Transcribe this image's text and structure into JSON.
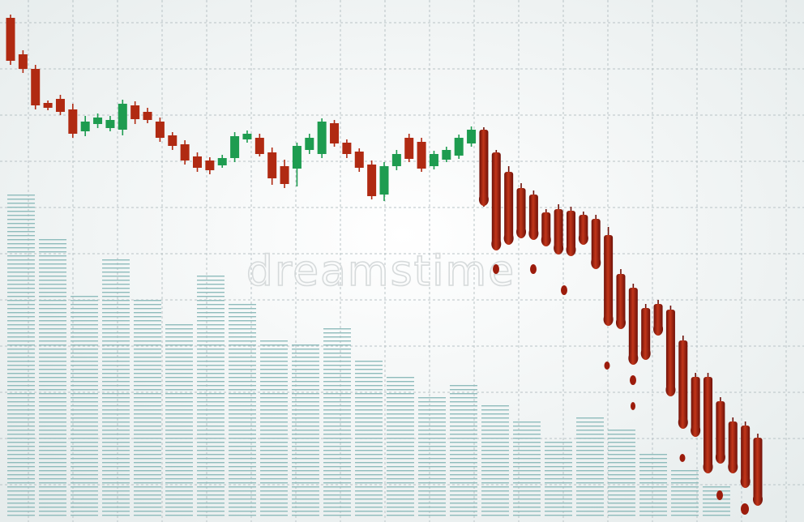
{
  "chart_data": {
    "type": "candlestick",
    "watermark": "dreamstime",
    "ylim": [
      0,
      640
    ],
    "grid": true,
    "up_color": "#1e9c50",
    "down_color": "#b02a12",
    "open": [
      618,
      573,
      555,
      513,
      518,
      505,
      478,
      487,
      482,
      480,
      510,
      502,
      490,
      473,
      462,
      447,
      442,
      436,
      445,
      468,
      470,
      452,
      435,
      432,
      455,
      450,
      488,
      464,
      453,
      437,
      400,
      435,
      470,
      465,
      435,
      443,
      448,
      463,
      480,
      452,
      428,
      408,
      400,
      378,
      382,
      380,
      375,
      370,
      350,
      302,
      285,
      260,
      265,
      258,
      220,
      175,
      175,
      145,
      120,
      115,
      100
    ],
    "high": [
      622,
      578,
      560,
      516,
      523,
      512,
      497,
      500,
      497,
      517,
      515,
      507,
      495,
      477,
      467,
      452,
      446,
      449,
      477,
      479,
      475,
      458,
      443,
      464,
      475,
      494,
      492,
      468,
      457,
      442,
      440,
      455,
      475,
      470,
      454,
      459,
      474,
      484,
      483,
      455,
      435,
      414,
      405,
      382,
      388,
      385,
      379,
      375,
      360,
      308,
      290,
      265,
      270,
      263,
      226,
      180,
      180,
      150,
      125,
      120,
      105
    ],
    "low": [
      560,
      550,
      505,
      504,
      498,
      470,
      472,
      482,
      478,
      473,
      487,
      488,
      465,
      455,
      437,
      428,
      425,
      433,
      440,
      464,
      447,
      412,
      408,
      410,
      450,
      445,
      459,
      445,
      428,
      394,
      392,
      430,
      440,
      428,
      431,
      440,
      444,
      459,
      385,
      333,
      340,
      346,
      345,
      338,
      328,
      325,
      340,
      310,
      240,
      236,
      192,
      198,
      228,
      153,
      113,
      103,
      58,
      70,
      58,
      40,
      18
    ],
    "close": [
      565,
      555,
      510,
      507,
      502,
      475,
      490,
      495,
      492,
      512,
      493,
      492,
      470,
      460,
      442,
      433,
      430,
      445,
      472,
      475,
      450,
      420,
      413,
      460,
      470,
      490,
      463,
      450,
      433,
      398,
      435,
      450,
      444,
      432,
      450,
      455,
      470,
      480,
      390,
      335,
      342,
      350,
      348,
      340,
      330,
      328,
      342,
      312,
      242,
      238,
      194,
      200,
      230,
      155,
      115,
      105,
      60,
      72,
      60,
      42,
      20
    ],
    "volume": {
      "color": "#8fbcbc",
      "values": [
        400,
        345,
        275,
        320,
        270,
        240,
        300,
        265,
        220,
        215,
        235,
        195,
        178,
        152,
        165,
        140,
        122,
        95,
        128,
        110,
        80,
        60,
        42
      ]
    }
  }
}
